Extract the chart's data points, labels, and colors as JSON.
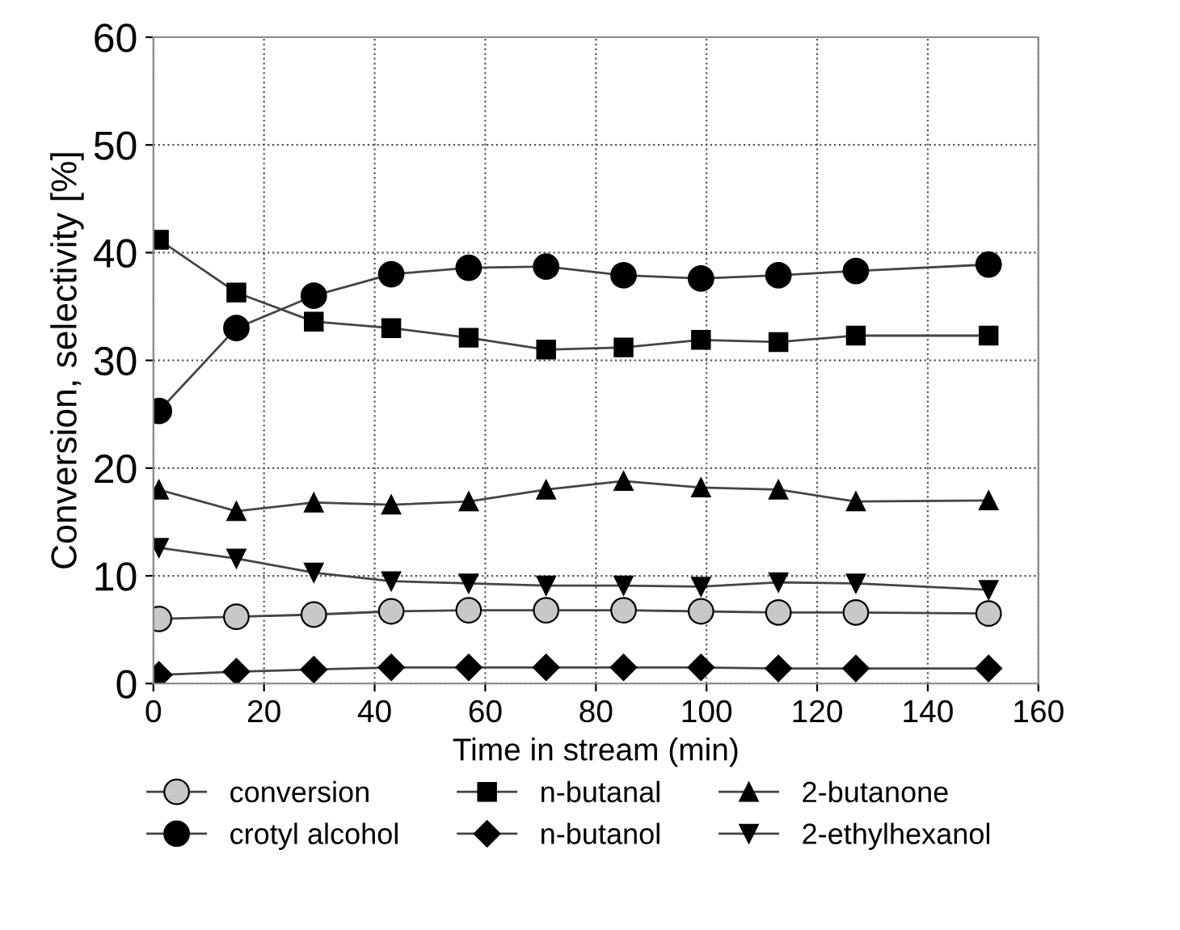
{
  "chart_data": {
    "type": "line",
    "xlabel": "Time in stream (min)",
    "ylabel": "Conversion, selectivity [%]",
    "x": [
      1,
      15,
      29,
      43,
      57,
      71,
      85,
      99,
      113,
      127,
      151
    ],
    "xlim": [
      0,
      160
    ],
    "xticks": [
      0,
      20,
      40,
      60,
      80,
      100,
      120,
      140,
      160
    ],
    "ylim": [
      0,
      60
    ],
    "yticks": [
      0,
      10,
      20,
      30,
      40,
      50,
      60
    ],
    "grid": true,
    "legend": "bottom",
    "line_style": "solid",
    "series": [
      {
        "name": "conversion",
        "color": "#c8c8c8",
        "marker": "circle",
        "values": [
          6,
          6.2,
          6.4,
          6.7,
          6.8,
          6.8,
          6.8,
          6.7,
          6.6,
          6.6,
          6.5
        ]
      },
      {
        "name": "crotyl alcohol",
        "color": "#000000",
        "marker": "circle",
        "values": [
          25.3,
          33,
          36,
          38,
          38.6,
          38.7,
          37.9,
          37.6,
          37.9,
          38.3,
          38.9
        ]
      },
      {
        "name": "n-butanal",
        "color": "#000000",
        "marker": "square",
        "values": [
          41.2,
          36.3,
          33.6,
          33,
          32.1,
          31,
          31.2,
          31.9,
          31.7,
          32.3,
          32.3
        ]
      },
      {
        "name": "n-butanol",
        "color": "#000000",
        "marker": "diamond",
        "values": [
          0.8,
          1.1,
          1.3,
          1.5,
          1.5,
          1.5,
          1.5,
          1.5,
          1.4,
          1.4,
          1.4
        ]
      },
      {
        "name": "2-butanone",
        "color": "#000000",
        "marker": "triangle",
        "values": [
          18,
          16,
          16.8,
          16.6,
          16.9,
          18,
          18.8,
          18.2,
          18,
          16.9,
          17
        ]
      },
      {
        "name": "2-ethylhexanol",
        "color": "#000000",
        "marker": "triangle_down",
        "values": [
          12.6,
          11.6,
          10.3,
          9.5,
          9.3,
          9.1,
          9.1,
          9.0,
          9.4,
          9.3,
          8.7
        ]
      }
    ]
  }
}
